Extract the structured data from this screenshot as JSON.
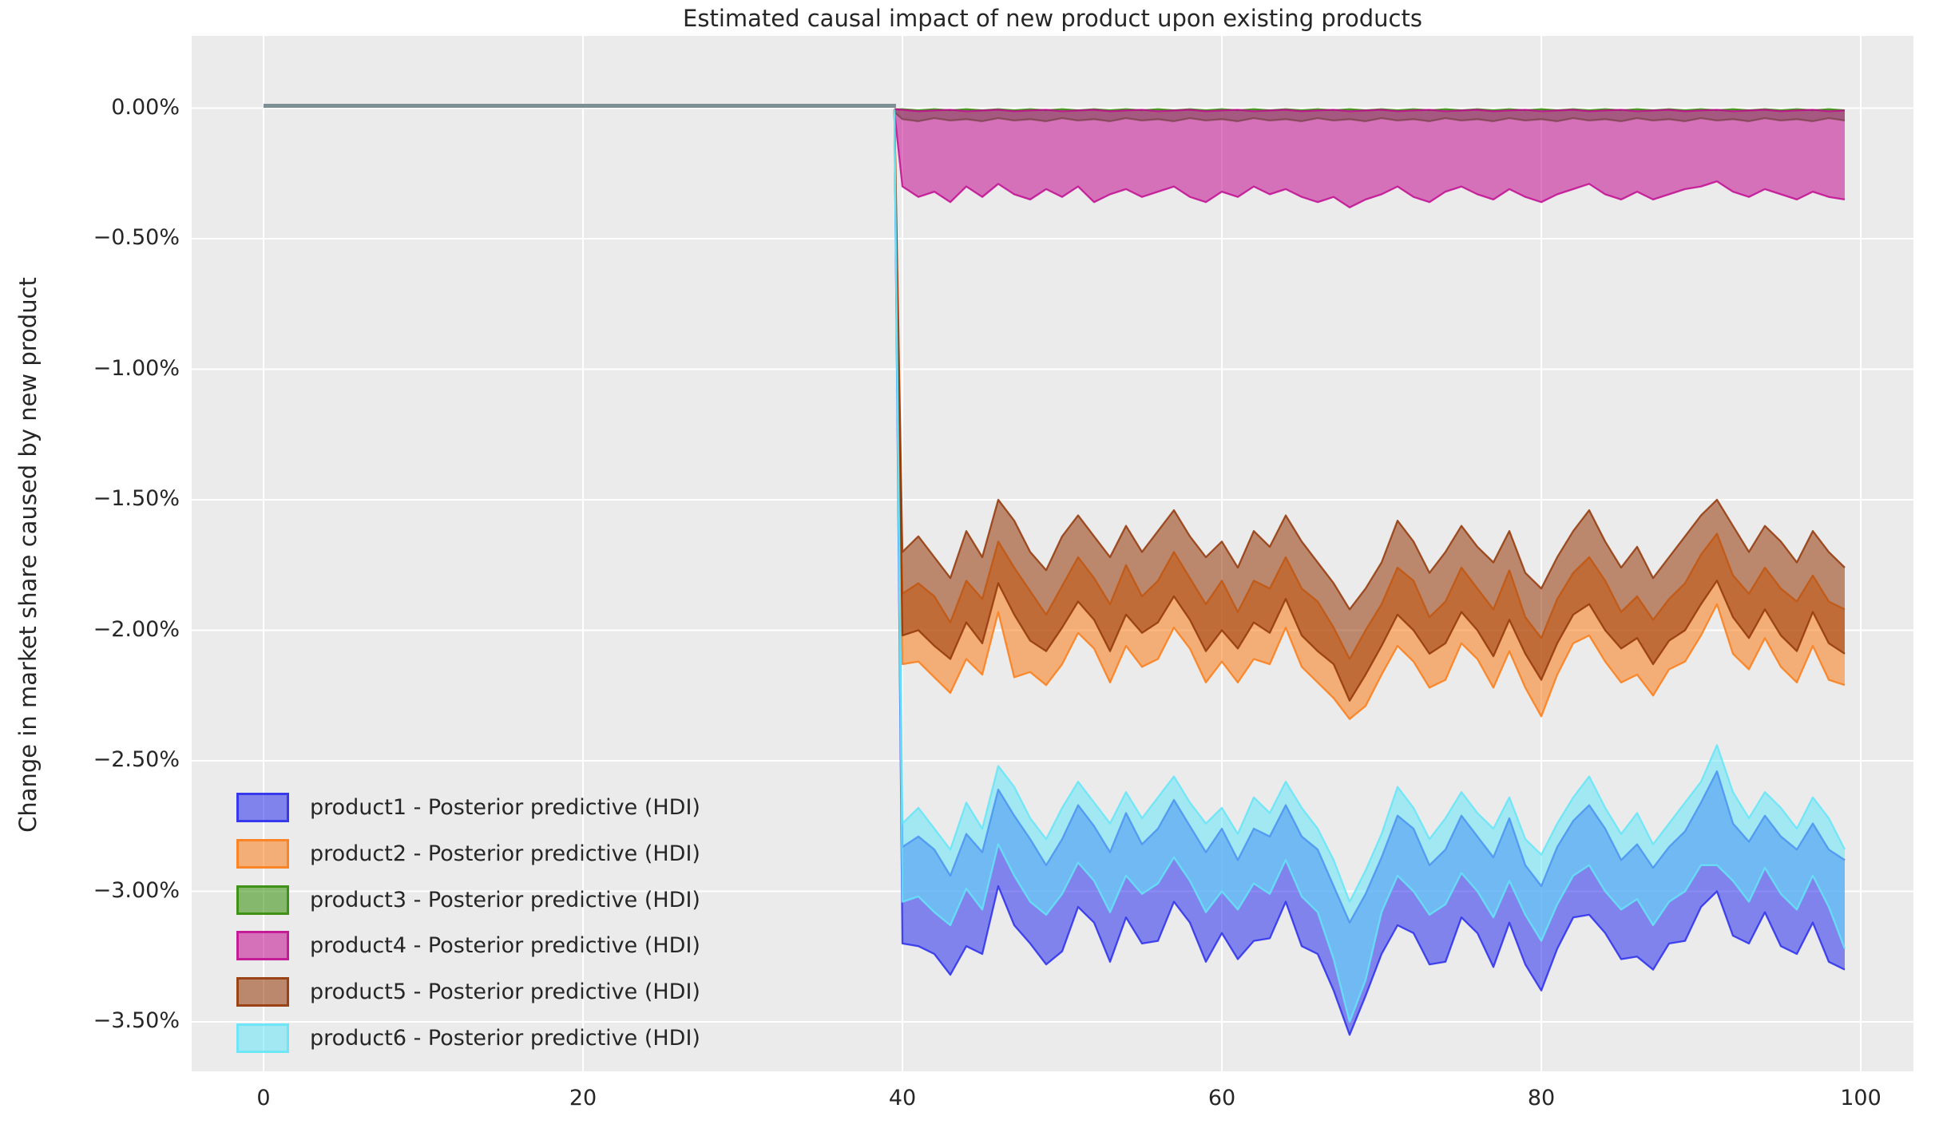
{
  "title": "Estimated causal impact of new product upon existing products",
  "chart_data": {
    "type": "area",
    "title": "Estimated causal impact of new product upon existing products",
    "xlabel": "",
    "ylabel": "Change in market share caused by new product",
    "grid": true,
    "plot_bg": "#ebebeb",
    "grid_color": "#ffffff",
    "legend_position": "lower left",
    "xlim": [
      -4.5,
      103.3
    ],
    "ylim_pct": [
      -3.69,
      0.28
    ],
    "x_ticks": [
      {
        "v": 0,
        "label": "0"
      },
      {
        "v": 20,
        "label": "20"
      },
      {
        "v": 40,
        "label": "40"
      },
      {
        "v": 60,
        "label": "60"
      },
      {
        "v": 80,
        "label": "80"
      },
      {
        "v": 100,
        "label": "100"
      }
    ],
    "y_ticks": [
      {
        "v": 0.0,
        "label": "0.00%"
      },
      {
        "v": -0.5,
        "label": "−0.50%"
      },
      {
        "v": -1.0,
        "label": "−1.00%"
      },
      {
        "v": -1.5,
        "label": "−1.50%"
      },
      {
        "v": -2.0,
        "label": "−2.00%"
      },
      {
        "v": -2.5,
        "label": "−2.50%"
      },
      {
        "v": -3.0,
        "label": "−3.00%"
      },
      {
        "v": -3.5,
        "label": "−3.50%"
      }
    ],
    "treatment_time": 40,
    "pre_period": {
      "x_start": 0,
      "x_end": 39.5,
      "value_pct": 0,
      "line_color": "#7d9194"
    },
    "post_x_start": 40,
    "x_step": 1,
    "fill_alpha": 0.55,
    "edge_alpha": 0.85,
    "series": [
      {
        "name": "product1",
        "label": "product1 - Posterior predictive (HDI)",
        "color": "#2a2eec",
        "hdi_upper_pct": [
          -2.83,
          -2.79,
          -2.84,
          -2.94,
          -2.78,
          -2.85,
          -2.61,
          -2.71,
          -2.8,
          -2.9,
          -2.8,
          -2.67,
          -2.75,
          -2.85,
          -2.7,
          -2.82,
          -2.76,
          -2.65,
          -2.75,
          -2.85,
          -2.76,
          -2.88,
          -2.76,
          -2.79,
          -2.67,
          -2.79,
          -2.84,
          -2.98,
          -3.12,
          -3.01,
          -2.87,
          -2.71,
          -2.76,
          -2.9,
          -2.84,
          -2.71,
          -2.79,
          -2.87,
          -2.72,
          -2.9,
          -2.98,
          -2.83,
          -2.73,
          -2.67,
          -2.76,
          -2.88,
          -2.82,
          -2.91,
          -2.83,
          -2.77,
          -2.66,
          -2.54,
          -2.74,
          -2.81,
          -2.71,
          -2.79,
          -2.84,
          -2.74,
          -2.84,
          -2.88
        ],
        "hdi_lower_pct": [
          -3.2,
          -3.21,
          -3.24,
          -3.32,
          -3.21,
          -3.24,
          -2.98,
          -3.13,
          -3.2,
          -3.28,
          -3.23,
          -3.06,
          -3.12,
          -3.27,
          -3.1,
          -3.2,
          -3.19,
          -3.04,
          -3.12,
          -3.27,
          -3.16,
          -3.26,
          -3.19,
          -3.18,
          -3.04,
          -3.21,
          -3.24,
          -3.38,
          -3.55,
          -3.4,
          -3.24,
          -3.13,
          -3.16,
          -3.28,
          -3.27,
          -3.1,
          -3.16,
          -3.29,
          -3.12,
          -3.28,
          -3.38,
          -3.22,
          -3.1,
          -3.09,
          -3.16,
          -3.26,
          -3.25,
          -3.3,
          -3.2,
          -3.19,
          -3.06,
          -3.0,
          -3.17,
          -3.2,
          -3.08,
          -3.21,
          -3.24,
          -3.12,
          -3.27,
          -3.3
        ]
      },
      {
        "name": "product2",
        "label": "product2 - Posterior predictive (HDI)",
        "color": "#fa7c17",
        "hdi_upper_pct": [
          -1.86,
          -1.82,
          -1.87,
          -1.97,
          -1.81,
          -1.88,
          -1.66,
          -1.76,
          -1.85,
          -1.94,
          -1.83,
          -1.72,
          -1.8,
          -1.9,
          -1.75,
          -1.87,
          -1.81,
          -1.7,
          -1.8,
          -1.9,
          -1.81,
          -1.93,
          -1.81,
          -1.84,
          -1.72,
          -1.84,
          -1.89,
          -1.99,
          -2.11,
          -2.0,
          -1.9,
          -1.76,
          -1.81,
          -1.95,
          -1.89,
          -1.76,
          -1.84,
          -1.92,
          -1.77,
          -1.95,
          -2.03,
          -1.88,
          -1.78,
          -1.72,
          -1.81,
          -1.93,
          -1.87,
          -1.96,
          -1.88,
          -1.82,
          -1.71,
          -1.63,
          -1.79,
          -1.86,
          -1.76,
          -1.84,
          -1.89,
          -1.79,
          -1.89,
          -1.92
        ],
        "hdi_lower_pct": [
          -2.13,
          -2.12,
          -2.18,
          -2.24,
          -2.11,
          -2.17,
          -1.93,
          -2.18,
          -2.16,
          -2.21,
          -2.13,
          -2.01,
          -2.07,
          -2.2,
          -2.06,
          -2.14,
          -2.11,
          -1.99,
          -2.07,
          -2.2,
          -2.12,
          -2.2,
          -2.11,
          -2.13,
          -1.99,
          -2.14,
          -2.2,
          -2.26,
          -2.34,
          -2.29,
          -2.17,
          -2.06,
          -2.12,
          -2.22,
          -2.19,
          -2.05,
          -2.11,
          -2.22,
          -2.08,
          -2.22,
          -2.33,
          -2.17,
          -2.05,
          -2.02,
          -2.12,
          -2.2,
          -2.17,
          -2.25,
          -2.15,
          -2.12,
          -2.02,
          -1.9,
          -2.09,
          -2.15,
          -2.03,
          -2.14,
          -2.2,
          -2.06,
          -2.19,
          -2.21
        ]
      },
      {
        "name": "product3",
        "label": "product3 - Posterior predictive (HDI)",
        "color": "#328c06",
        "hdi_upper_pct": [
          -0.004,
          -0.008,
          -0.004,
          -0.008,
          -0.004,
          -0.008,
          -0.004,
          -0.008,
          -0.004,
          -0.008,
          -0.004,
          -0.008,
          -0.004,
          -0.008,
          -0.004,
          -0.008,
          -0.004,
          -0.008,
          -0.004,
          -0.008,
          -0.004,
          -0.008,
          -0.004,
          -0.008,
          -0.004,
          -0.008,
          -0.004,
          -0.008,
          -0.004,
          -0.008,
          -0.004,
          -0.008,
          -0.004,
          -0.008,
          -0.004,
          -0.008,
          -0.004,
          -0.008,
          -0.004,
          -0.008,
          -0.004,
          -0.008,
          -0.004,
          -0.008,
          -0.004,
          -0.008,
          -0.004,
          -0.008,
          -0.004,
          -0.008,
          -0.004,
          -0.008,
          -0.004,
          -0.008,
          -0.004,
          -0.008,
          -0.004,
          -0.008,
          -0.004,
          -0.008
        ],
        "hdi_lower_pct": [
          -0.042,
          -0.05,
          -0.038,
          -0.047,
          -0.042,
          -0.05,
          -0.038,
          -0.047,
          -0.042,
          -0.05,
          -0.038,
          -0.047,
          -0.042,
          -0.05,
          -0.038,
          -0.047,
          -0.042,
          -0.05,
          -0.038,
          -0.047,
          -0.042,
          -0.05,
          -0.038,
          -0.047,
          -0.042,
          -0.05,
          -0.038,
          -0.047,
          -0.042,
          -0.05,
          -0.038,
          -0.047,
          -0.042,
          -0.05,
          -0.038,
          -0.047,
          -0.042,
          -0.05,
          -0.038,
          -0.047,
          -0.042,
          -0.05,
          -0.038,
          -0.047,
          -0.042,
          -0.05,
          -0.038,
          -0.047,
          -0.042,
          -0.05,
          -0.038,
          -0.047,
          -0.042,
          -0.05,
          -0.038,
          -0.047,
          -0.042,
          -0.05,
          -0.038,
          -0.047
        ]
      },
      {
        "name": "product4",
        "label": "product4 - Posterior predictive (HDI)",
        "color": "#c10c90",
        "hdi_upper_pct": [
          -0.006,
          -0.012,
          -0.009,
          -0.006,
          -0.012,
          -0.009,
          -0.006,
          -0.012,
          -0.009,
          -0.006,
          -0.012,
          -0.009,
          -0.006,
          -0.012,
          -0.009,
          -0.006,
          -0.012,
          -0.009,
          -0.006,
          -0.012,
          -0.009,
          -0.006,
          -0.012,
          -0.009,
          -0.006,
          -0.012,
          -0.009,
          -0.006,
          -0.012,
          -0.009,
          -0.006,
          -0.012,
          -0.009,
          -0.006,
          -0.012,
          -0.009,
          -0.006,
          -0.012,
          -0.009,
          -0.006,
          -0.012,
          -0.009,
          -0.006,
          -0.012,
          -0.009,
          -0.006,
          -0.012,
          -0.009,
          -0.006,
          -0.012,
          -0.009,
          -0.006,
          -0.012,
          -0.009,
          -0.006,
          -0.012,
          -0.009,
          -0.006,
          -0.012,
          -0.009
        ],
        "hdi_lower_pct": [
          -0.3,
          -0.34,
          -0.32,
          -0.36,
          -0.3,
          -0.34,
          -0.29,
          -0.33,
          -0.35,
          -0.31,
          -0.34,
          -0.3,
          -0.36,
          -0.33,
          -0.31,
          -0.34,
          -0.32,
          -0.3,
          -0.34,
          -0.36,
          -0.32,
          -0.34,
          -0.3,
          -0.33,
          -0.31,
          -0.34,
          -0.36,
          -0.34,
          -0.38,
          -0.35,
          -0.33,
          -0.3,
          -0.34,
          -0.36,
          -0.32,
          -0.3,
          -0.33,
          -0.35,
          -0.31,
          -0.34,
          -0.36,
          -0.33,
          -0.31,
          -0.29,
          -0.33,
          -0.35,
          -0.32,
          -0.35,
          -0.33,
          -0.31,
          -0.3,
          -0.28,
          -0.32,
          -0.34,
          -0.31,
          -0.33,
          -0.35,
          -0.32,
          -0.34,
          -0.35
        ]
      },
      {
        "name": "product5",
        "label": "product5 - Posterior predictive (HDI)",
        "color": "#933708",
        "hdi_upper_pct": [
          -1.7,
          -1.64,
          -1.72,
          -1.8,
          -1.62,
          -1.72,
          -1.5,
          -1.58,
          -1.7,
          -1.77,
          -1.64,
          -1.56,
          -1.64,
          -1.72,
          -1.6,
          -1.7,
          -1.62,
          -1.54,
          -1.64,
          -1.72,
          -1.66,
          -1.76,
          -1.62,
          -1.68,
          -1.56,
          -1.66,
          -1.74,
          -1.82,
          -1.92,
          -1.84,
          -1.74,
          -1.58,
          -1.66,
          -1.78,
          -1.7,
          -1.6,
          -1.68,
          -1.74,
          -1.62,
          -1.78,
          -1.84,
          -1.72,
          -1.62,
          -1.54,
          -1.66,
          -1.76,
          -1.68,
          -1.8,
          -1.72,
          -1.64,
          -1.56,
          -1.5,
          -1.6,
          -1.7,
          -1.6,
          -1.66,
          -1.74,
          -1.62,
          -1.7,
          -1.76
        ],
        "hdi_lower_pct": [
          -2.02,
          -2.0,
          -2.06,
          -2.11,
          -1.97,
          -2.05,
          -1.82,
          -1.94,
          -2.04,
          -2.08,
          -1.99,
          -1.89,
          -1.96,
          -2.08,
          -1.94,
          -2.01,
          -1.97,
          -1.87,
          -1.96,
          -2.08,
          -2.0,
          -2.07,
          -1.97,
          -2.01,
          -1.88,
          -2.02,
          -2.08,
          -2.13,
          -2.27,
          -2.17,
          -2.06,
          -1.94,
          -2.0,
          -2.09,
          -2.05,
          -1.93,
          -2.0,
          -2.1,
          -1.96,
          -2.09,
          -2.19,
          -2.05,
          -1.94,
          -1.9,
          -2.0,
          -2.07,
          -2.03,
          -2.13,
          -2.04,
          -2.0,
          -1.9,
          -1.81,
          -1.95,
          -2.03,
          -1.92,
          -2.02,
          -2.08,
          -1.93,
          -2.05,
          -2.09
        ]
      },
      {
        "name": "product6",
        "label": "product6 - Posterior predictive (HDI)",
        "color": "#65e5f8",
        "hdi_upper_pct": [
          -2.74,
          -2.68,
          -2.76,
          -2.84,
          -2.66,
          -2.76,
          -2.52,
          -2.6,
          -2.72,
          -2.8,
          -2.68,
          -2.58,
          -2.66,
          -2.74,
          -2.62,
          -2.72,
          -2.64,
          -2.56,
          -2.66,
          -2.74,
          -2.68,
          -2.78,
          -2.64,
          -2.7,
          -2.58,
          -2.68,
          -2.76,
          -2.88,
          -3.04,
          -2.92,
          -2.78,
          -2.6,
          -2.68,
          -2.8,
          -2.72,
          -2.62,
          -2.7,
          -2.76,
          -2.64,
          -2.8,
          -2.86,
          -2.74,
          -2.64,
          -2.56,
          -2.68,
          -2.78,
          -2.7,
          -2.82,
          -2.74,
          -2.66,
          -2.58,
          -2.44,
          -2.62,
          -2.72,
          -2.62,
          -2.68,
          -2.76,
          -2.64,
          -2.72,
          -2.84
        ],
        "hdi_lower_pct": [
          -3.04,
          -3.02,
          -3.08,
          -3.13,
          -2.99,
          -3.07,
          -2.82,
          -2.94,
          -3.04,
          -3.09,
          -3.01,
          -2.89,
          -2.96,
          -3.08,
          -2.94,
          -3.01,
          -2.97,
          -2.87,
          -2.96,
          -3.08,
          -3.0,
          -3.07,
          -2.97,
          -3.01,
          -2.88,
          -3.02,
          -3.08,
          -3.26,
          -3.5,
          -3.34,
          -3.08,
          -2.94,
          -3.0,
          -3.09,
          -3.05,
          -2.93,
          -3.0,
          -3.1,
          -2.96,
          -3.09,
          -3.19,
          -3.05,
          -2.94,
          -2.9,
          -3.0,
          -3.07,
          -3.03,
          -3.13,
          -3.04,
          -3.0,
          -2.9,
          -2.9,
          -2.96,
          -3.04,
          -2.91,
          -3.01,
          -3.07,
          -2.94,
          -3.06,
          -3.22
        ]
      }
    ]
  },
  "legend": {
    "items": [
      {
        "label": "product1 - Posterior predictive (HDI)",
        "color": "#2a2eec"
      },
      {
        "label": "product2 - Posterior predictive (HDI)",
        "color": "#fa7c17"
      },
      {
        "label": "product3 - Posterior predictive (HDI)",
        "color": "#328c06"
      },
      {
        "label": "product4 - Posterior predictive (HDI)",
        "color": "#c10c90"
      },
      {
        "label": "product5 - Posterior predictive (HDI)",
        "color": "#933708"
      },
      {
        "label": "product6 - Posterior predictive (HDI)",
        "color": "#65e5f8"
      }
    ]
  }
}
